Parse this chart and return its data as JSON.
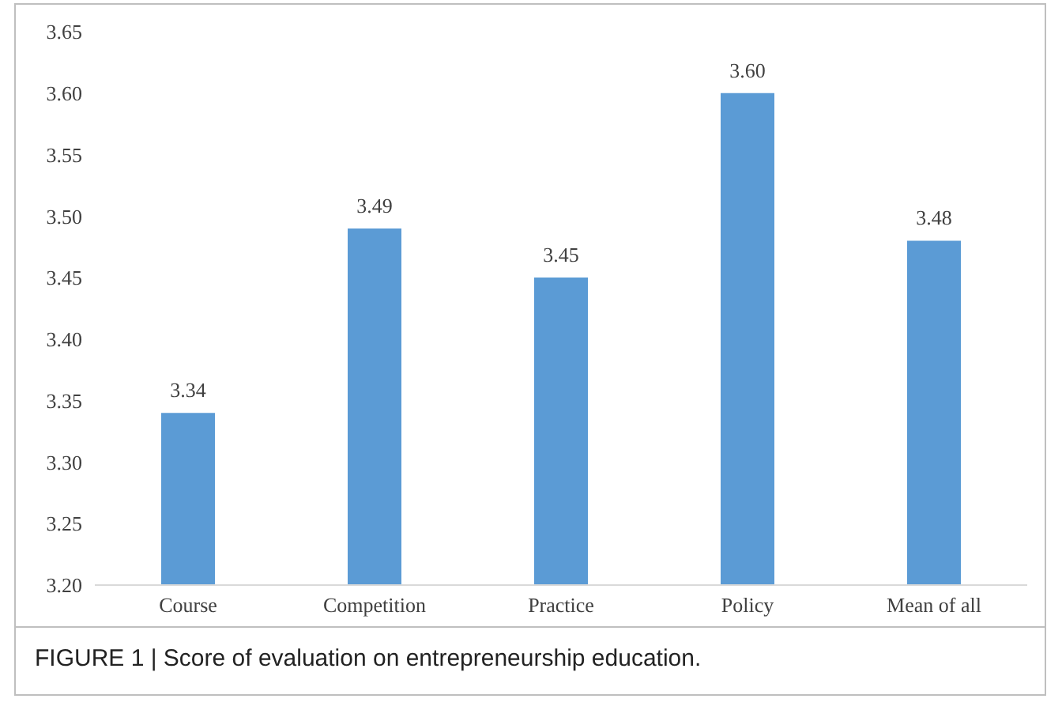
{
  "chart_data": {
    "type": "bar",
    "categories": [
      "Course",
      "Competition",
      "Practice",
      "Policy",
      "Mean of all"
    ],
    "values": [
      3.34,
      3.49,
      3.45,
      3.6,
      3.48
    ],
    "value_labels": [
      "3.34",
      "3.49",
      "3.45",
      "3.60",
      "3.48"
    ],
    "color": "#5b9bd5",
    "ylim": [
      3.2,
      3.65
    ],
    "yticks": [
      {
        "value": 3.2,
        "label": "3.20"
      },
      {
        "value": 3.25,
        "label": "3.25"
      },
      {
        "value": 3.3,
        "label": "3.30"
      },
      {
        "value": 3.35,
        "label": "3.35"
      },
      {
        "value": 3.4,
        "label": "3.40"
      },
      {
        "value": 3.45,
        "label": "3.45"
      },
      {
        "value": 3.5,
        "label": "3.50"
      },
      {
        "value": 3.55,
        "label": "3.55"
      },
      {
        "value": 3.6,
        "label": "3.60"
      },
      {
        "value": 3.65,
        "label": "3.65"
      }
    ],
    "grid": false,
    "annotations": [
      "FIGURE 1 | Score of evaluation on entrepreneurship education."
    ]
  }
}
